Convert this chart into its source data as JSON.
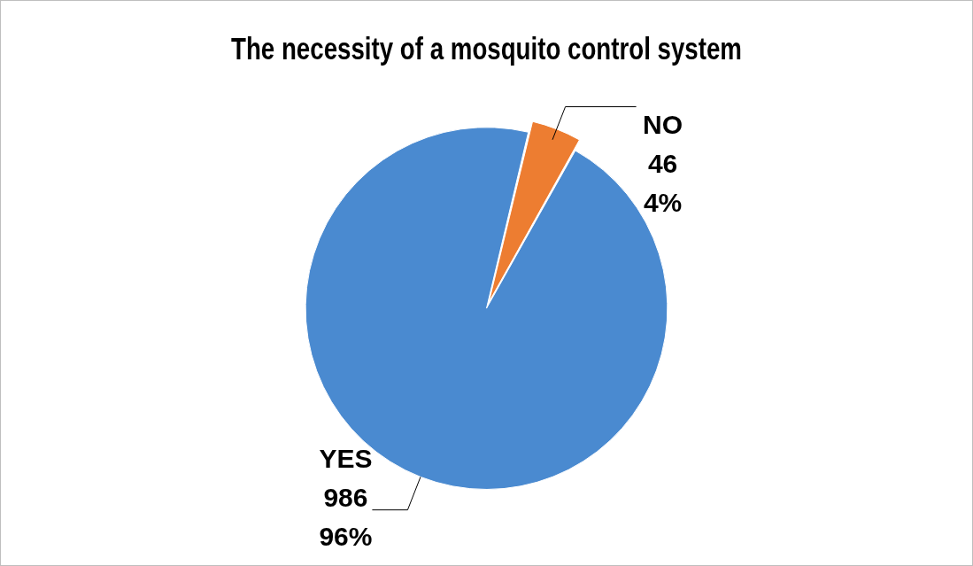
{
  "chart_data": {
    "type": "pie",
    "title": "The necessity of a mosquito control system",
    "categories": [
      "YES",
      "NO"
    ],
    "values": [
      986,
      46
    ],
    "colors": [
      "#4a8ad0",
      "#ed7d31"
    ],
    "value_labels": [
      "986\n96%",
      "46\n4%"
    ],
    "legend": false
  }
}
